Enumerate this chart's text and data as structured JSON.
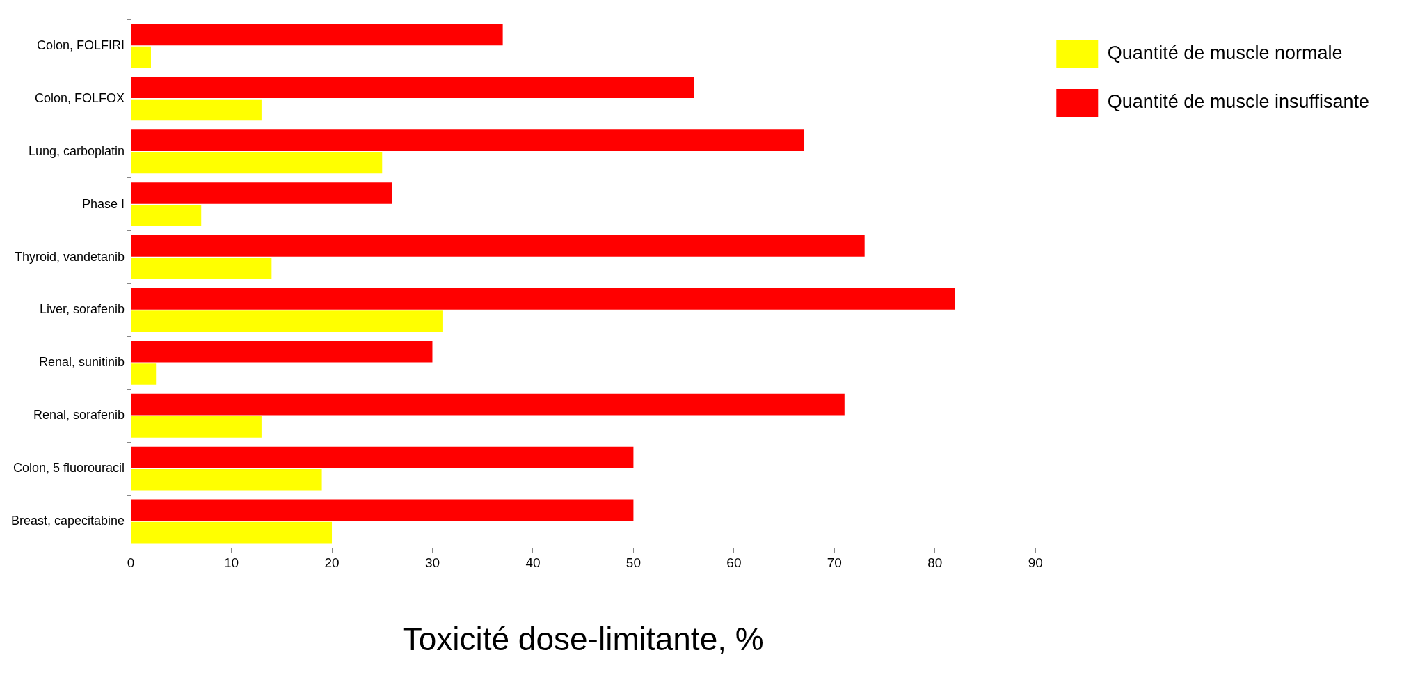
{
  "chart_data": {
    "type": "bar",
    "orientation": "horizontal",
    "xlabel": "Toxicité dose-limitante, %",
    "categories": [
      "Colon, FOLFIRI",
      "Colon, FOLFOX",
      "Lung, carboplatin",
      "Phase I",
      "Thyroid, vandetanib",
      "Liver, sorafenib",
      "Renal, sunitinib",
      "Renal, sorafenib",
      "Colon, 5 fluorouracil",
      "Breast, capecitabine"
    ],
    "series": [
      {
        "name": "Quantité de muscle normale",
        "color": "#ffff00",
        "values": [
          2,
          13,
          25,
          7,
          14,
          31,
          2.5,
          13,
          19,
          20
        ]
      },
      {
        "name": "Quantité de muscle insuffisante",
        "color": "#ff0000",
        "values": [
          37,
          56,
          67,
          26,
          73,
          82,
          30,
          71,
          50,
          50
        ]
      }
    ],
    "xlim": [
      0,
      90
    ],
    "xticks": [
      0,
      10,
      20,
      30,
      40,
      50,
      60,
      70,
      80,
      90
    ],
    "grid": false,
    "legend": "right"
  }
}
